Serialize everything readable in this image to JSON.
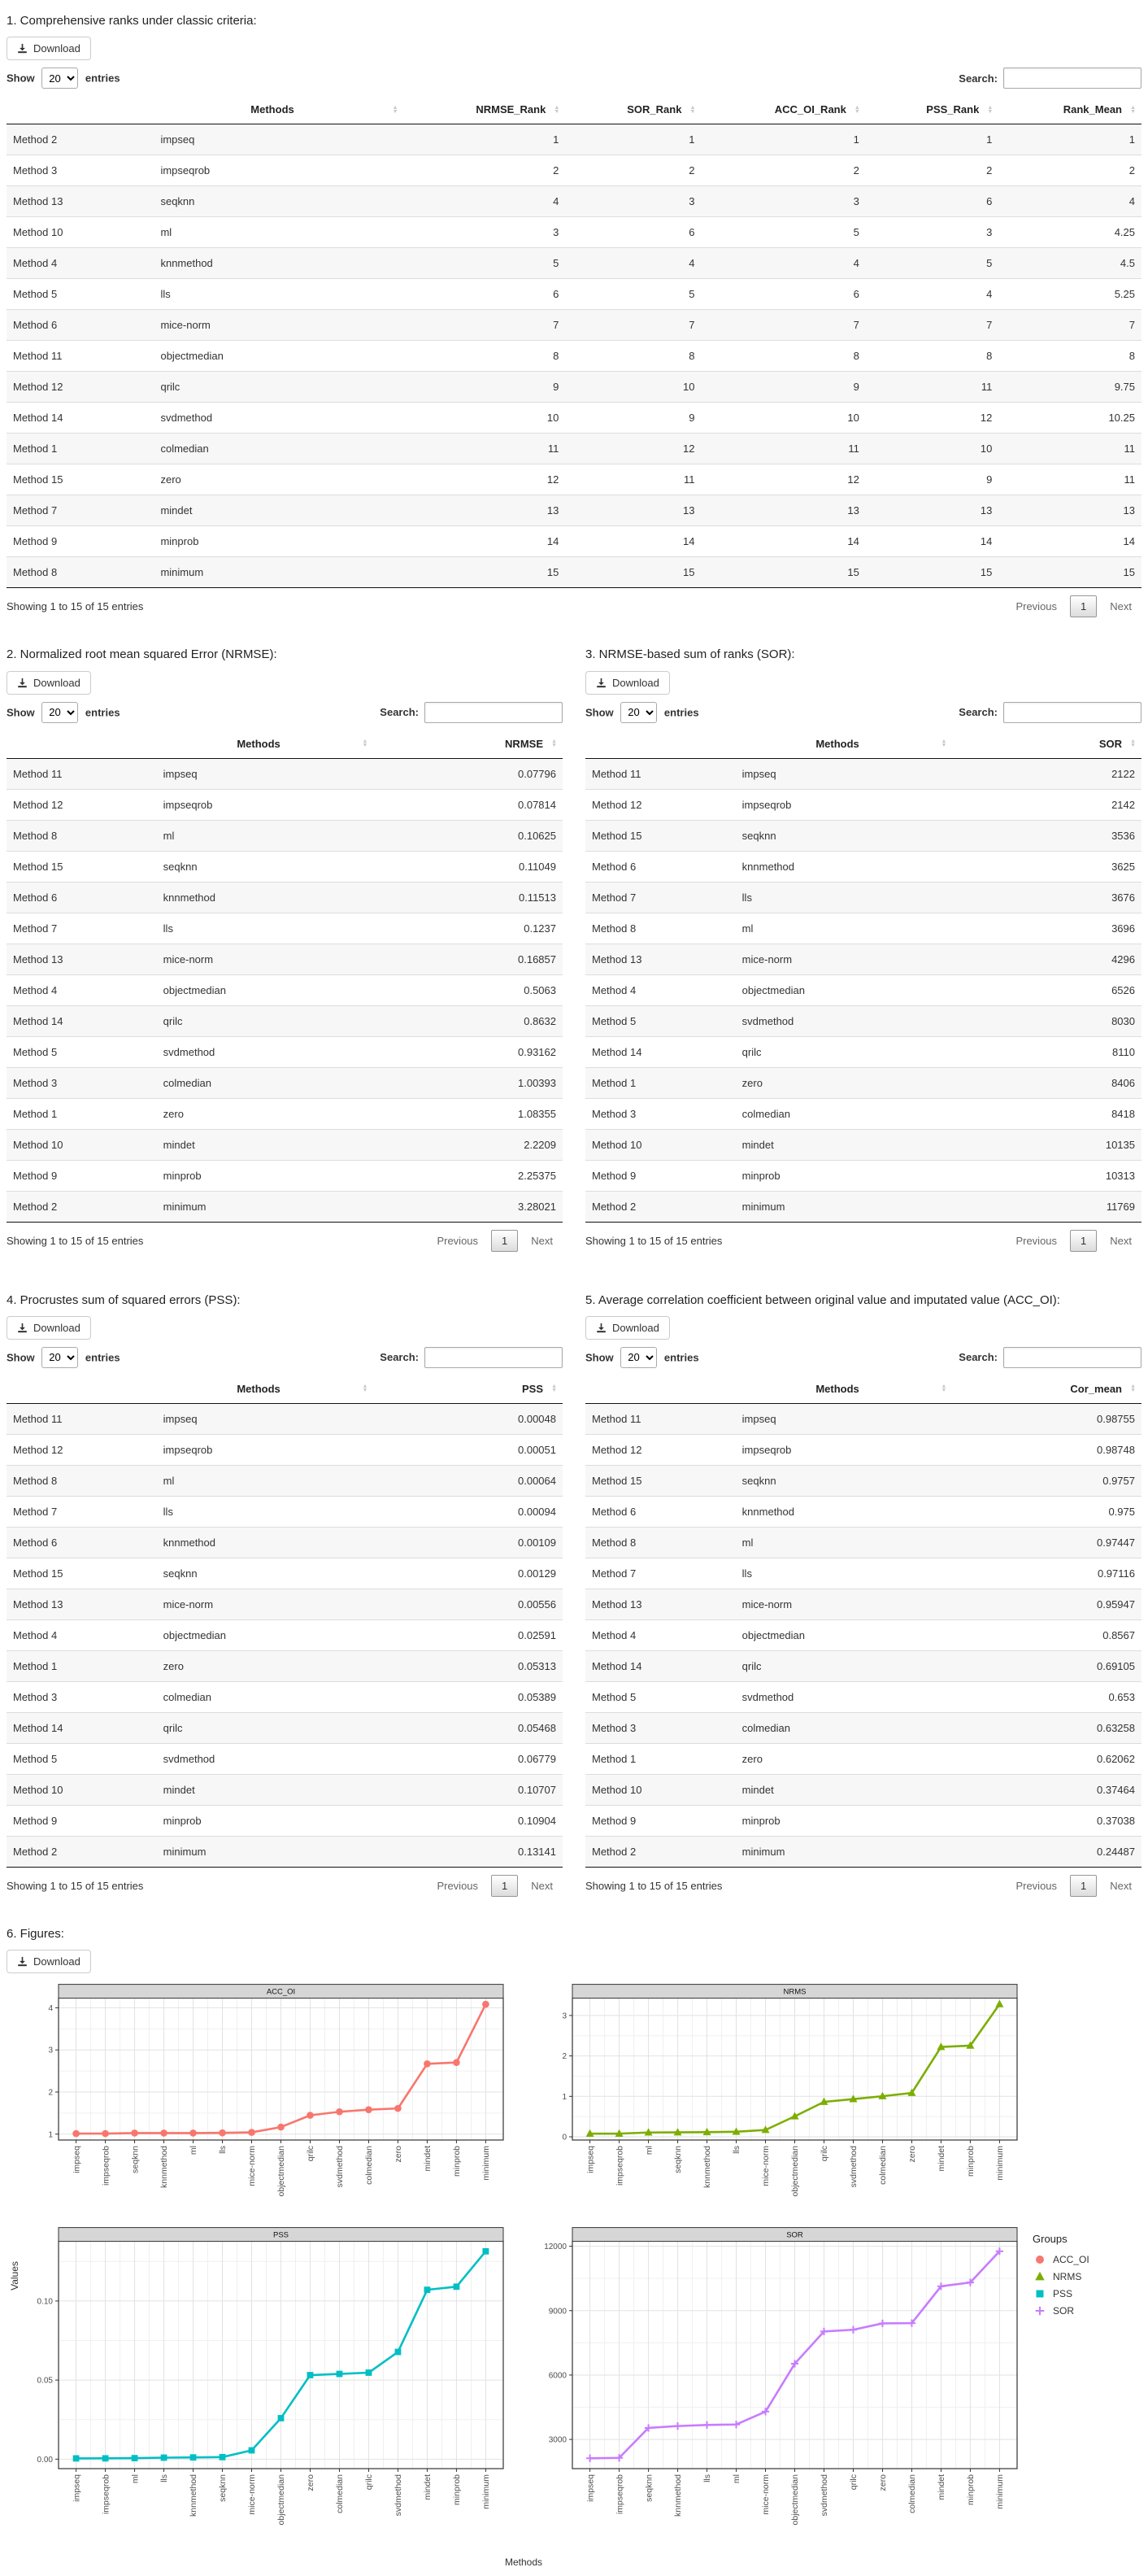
{
  "labels": {
    "download": "Download",
    "show": "Show",
    "page_size": "20",
    "entries": "entries",
    "search": "Search:",
    "showing_info": "Showing 1 to 15 of 15 entries",
    "previous": "Previous",
    "page_current": "1",
    "next": "Next"
  },
  "tables": [
    {
      "title": "1. Comprehensive ranks under classic criteria:",
      "columns": [
        "",
        "Methods",
        "NRMSE_Rank",
        "SOR_Rank",
        "ACC_OI_Rank",
        "PSS_Rank",
        "Rank_Mean"
      ],
      "rows": [
        [
          "Method 2",
          "impseq",
          "1",
          "1",
          "1",
          "1",
          "1"
        ],
        [
          "Method 3",
          "impseqrob",
          "2",
          "2",
          "2",
          "2",
          "2"
        ],
        [
          "Method 13",
          "seqknn",
          "4",
          "3",
          "3",
          "6",
          "4"
        ],
        [
          "Method 10",
          "ml",
          "3",
          "6",
          "5",
          "3",
          "4.25"
        ],
        [
          "Method 4",
          "knnmethod",
          "5",
          "4",
          "4",
          "5",
          "4.5"
        ],
        [
          "Method 5",
          "lls",
          "6",
          "5",
          "6",
          "4",
          "5.25"
        ],
        [
          "Method 6",
          "mice-norm",
          "7",
          "7",
          "7",
          "7",
          "7"
        ],
        [
          "Method 11",
          "objectmedian",
          "8",
          "8",
          "8",
          "8",
          "8"
        ],
        [
          "Method 12",
          "qrilc",
          "9",
          "10",
          "9",
          "11",
          "9.75"
        ],
        [
          "Method 14",
          "svdmethod",
          "10",
          "9",
          "10",
          "12",
          "10.25"
        ],
        [
          "Method 1",
          "colmedian",
          "11",
          "12",
          "11",
          "10",
          "11"
        ],
        [
          "Method 15",
          "zero",
          "12",
          "11",
          "12",
          "9",
          "11"
        ],
        [
          "Method 7",
          "mindet",
          "13",
          "13",
          "13",
          "13",
          "13"
        ],
        [
          "Method 9",
          "minprob",
          "14",
          "14",
          "14",
          "14",
          "14"
        ],
        [
          "Method 8",
          "minimum",
          "15",
          "15",
          "15",
          "15",
          "15"
        ]
      ]
    },
    {
      "title": "2. Normalized root mean squared Error (NRMSE):",
      "columns": [
        "",
        "Methods",
        "NRMSE"
      ],
      "rows": [
        [
          "Method 11",
          "impseq",
          "0.07796"
        ],
        [
          "Method 12",
          "impseqrob",
          "0.07814"
        ],
        [
          "Method 8",
          "ml",
          "0.10625"
        ],
        [
          "Method 15",
          "seqknn",
          "0.11049"
        ],
        [
          "Method 6",
          "knnmethod",
          "0.11513"
        ],
        [
          "Method 7",
          "lls",
          "0.1237"
        ],
        [
          "Method 13",
          "mice-norm",
          "0.16857"
        ],
        [
          "Method 4",
          "objectmedian",
          "0.5063"
        ],
        [
          "Method 14",
          "qrilc",
          "0.8632"
        ],
        [
          "Method 5",
          "svdmethod",
          "0.93162"
        ],
        [
          "Method 3",
          "colmedian",
          "1.00393"
        ],
        [
          "Method 1",
          "zero",
          "1.08355"
        ],
        [
          "Method 10",
          "mindet",
          "2.2209"
        ],
        [
          "Method 9",
          "minprob",
          "2.25375"
        ],
        [
          "Method 2",
          "minimum",
          "3.28021"
        ]
      ]
    },
    {
      "title": "3. NRMSE-based sum of ranks (SOR):",
      "columns": [
        "",
        "Methods",
        "SOR"
      ],
      "rows": [
        [
          "Method 11",
          "impseq",
          "2122"
        ],
        [
          "Method 12",
          "impseqrob",
          "2142"
        ],
        [
          "Method 15",
          "seqknn",
          "3536"
        ],
        [
          "Method 6",
          "knnmethod",
          "3625"
        ],
        [
          "Method 7",
          "lls",
          "3676"
        ],
        [
          "Method 8",
          "ml",
          "3696"
        ],
        [
          "Method 13",
          "mice-norm",
          "4296"
        ],
        [
          "Method 4",
          "objectmedian",
          "6526"
        ],
        [
          "Method 5",
          "svdmethod",
          "8030"
        ],
        [
          "Method 14",
          "qrilc",
          "8110"
        ],
        [
          "Method 1",
          "zero",
          "8406"
        ],
        [
          "Method 3",
          "colmedian",
          "8418"
        ],
        [
          "Method 10",
          "mindet",
          "10135"
        ],
        [
          "Method 9",
          "minprob",
          "10313"
        ],
        [
          "Method 2",
          "minimum",
          "11769"
        ]
      ]
    },
    {
      "title": "4. Procrustes sum of squared errors (PSS):",
      "columns": [
        "",
        "Methods",
        "PSS"
      ],
      "rows": [
        [
          "Method 11",
          "impseq",
          "0.00048"
        ],
        [
          "Method 12",
          "impseqrob",
          "0.00051"
        ],
        [
          "Method 8",
          "ml",
          "0.00064"
        ],
        [
          "Method 7",
          "lls",
          "0.00094"
        ],
        [
          "Method 6",
          "knnmethod",
          "0.00109"
        ],
        [
          "Method 15",
          "seqknn",
          "0.00129"
        ],
        [
          "Method 13",
          "mice-norm",
          "0.00556"
        ],
        [
          "Method 4",
          "objectmedian",
          "0.02591"
        ],
        [
          "Method 1",
          "zero",
          "0.05313"
        ],
        [
          "Method 3",
          "colmedian",
          "0.05389"
        ],
        [
          "Method 14",
          "qrilc",
          "0.05468"
        ],
        [
          "Method 5",
          "svdmethod",
          "0.06779"
        ],
        [
          "Method 10",
          "mindet",
          "0.10707"
        ],
        [
          "Method 9",
          "minprob",
          "0.10904"
        ],
        [
          "Method 2",
          "minimum",
          "0.13141"
        ]
      ]
    },
    {
      "title": "5. Average correlation coefficient between original value and imputated value (ACC_OI):",
      "columns": [
        "",
        "Methods",
        "Cor_mean"
      ],
      "rows": [
        [
          "Method 11",
          "impseq",
          "0.98755"
        ],
        [
          "Method 12",
          "impseqrob",
          "0.98748"
        ],
        [
          "Method 15",
          "seqknn",
          "0.9757"
        ],
        [
          "Method 6",
          "knnmethod",
          "0.975"
        ],
        [
          "Method 8",
          "ml",
          "0.97447"
        ],
        [
          "Method 7",
          "lls",
          "0.97116"
        ],
        [
          "Method 13",
          "mice-norm",
          "0.95947"
        ],
        [
          "Method 4",
          "objectmedian",
          "0.8567"
        ],
        [
          "Method 14",
          "qrilc",
          "0.69105"
        ],
        [
          "Method 5",
          "svdmethod",
          "0.653"
        ],
        [
          "Method 3",
          "colmedian",
          "0.63258"
        ],
        [
          "Method 1",
          "zero",
          "0.62062"
        ],
        [
          "Method 10",
          "mindet",
          "0.37464"
        ],
        [
          "Method 9",
          "minprob",
          "0.37038"
        ],
        [
          "Method 2",
          "minimum",
          "0.24487"
        ]
      ]
    }
  ],
  "figures": {
    "title": "6. Figures:",
    "xlabel": "Methods",
    "ylabel": "Values",
    "legend_title": "Groups"
  },
  "chart_data": [
    {
      "type": "line",
      "title": "ACC_OI",
      "color": "#F8766D",
      "marker": "circle",
      "categories": [
        "impseq",
        "impseqrob",
        "seqknn",
        "knnmethod",
        "ml",
        "lls",
        "mice-norm",
        "objectmedian",
        "qrilc",
        "svdmethod",
        "colmedian",
        "zero",
        "mindet",
        "minprob",
        "minimum"
      ],
      "values": [
        1.013,
        1.013,
        1.025,
        1.026,
        1.026,
        1.03,
        1.042,
        1.167,
        1.447,
        1.531,
        1.581,
        1.611,
        2.669,
        2.7,
        4.084
      ],
      "yticks": [
        1,
        2,
        3,
        4
      ],
      "ytick_labels": [
        "1",
        "2",
        "3",
        "4"
      ],
      "ylim": [
        0.86,
        4.24
      ],
      "grid": true
    },
    {
      "type": "line",
      "title": "NRMS",
      "color": "#7CAE00",
      "marker": "triangle",
      "categories": [
        "impseq",
        "impseqrob",
        "ml",
        "seqknn",
        "knnmethod",
        "lls",
        "mice-norm",
        "objectmedian",
        "qrilc",
        "svdmethod",
        "colmedian",
        "zero",
        "mindet",
        "minprob",
        "minimum"
      ],
      "values": [
        0.078,
        0.078,
        0.106,
        0.11,
        0.115,
        0.124,
        0.169,
        0.506,
        0.863,
        0.932,
        1.004,
        1.084,
        2.221,
        2.254,
        3.28
      ],
      "yticks": [
        0,
        1,
        2,
        3
      ],
      "ytick_labels": [
        "0",
        "1",
        "2",
        "3"
      ],
      "ylim": [
        -0.08,
        3.44
      ],
      "grid": true
    },
    {
      "type": "line",
      "title": "PSS",
      "color": "#00BFC4",
      "marker": "square",
      "categories": [
        "impseq",
        "impseqrob",
        "ml",
        "lls",
        "knnmethod",
        "seqknn",
        "mice-norm",
        "objectmedian",
        "zero",
        "colmedian",
        "qrilc",
        "svdmethod",
        "mindet",
        "minprob",
        "minimum"
      ],
      "values": [
        0.00048,
        0.00051,
        0.00064,
        0.00094,
        0.00109,
        0.00129,
        0.00556,
        0.02591,
        0.05313,
        0.05389,
        0.05468,
        0.06779,
        0.10707,
        0.10904,
        0.13141
      ],
      "yticks": [
        0,
        0.05,
        0.1
      ],
      "ytick_labels": [
        "0.00",
        "0.05",
        "0.10"
      ],
      "ylim": [
        -0.006,
        0.138
      ],
      "grid": true
    },
    {
      "type": "line",
      "title": "SOR",
      "color": "#C77CFF",
      "marker": "plus",
      "categories": [
        "impseq",
        "impseqrob",
        "seqknn",
        "knnmethod",
        "lls",
        "ml",
        "mice-norm",
        "objectmedian",
        "svdmethod",
        "qrilc",
        "zero",
        "colmedian",
        "mindet",
        "minprob",
        "minimum"
      ],
      "values": [
        2122,
        2142,
        3536,
        3625,
        3676,
        3696,
        4296,
        6526,
        8030,
        8110,
        8406,
        8418,
        10135,
        10313,
        11769
      ],
      "yticks": [
        3000,
        6000,
        9000,
        12000
      ],
      "ytick_labels": [
        "3000",
        "6000",
        "9000",
        "12000"
      ],
      "ylim": [
        1640,
        12250
      ],
      "grid": true
    }
  ]
}
